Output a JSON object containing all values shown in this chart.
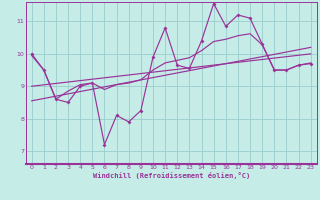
{
  "xlabel": "Windchill (Refroidissement éolien,°C)",
  "bg_color": "#c5ece6",
  "grid_color": "#99cccc",
  "line_color": "#993399",
  "spine_color": "#993399",
  "xlim": [
    -0.5,
    23.5
  ],
  "ylim": [
    6.6,
    11.6
  ],
  "xticks": [
    0,
    1,
    2,
    3,
    4,
    5,
    6,
    7,
    8,
    9,
    10,
    11,
    12,
    13,
    14,
    15,
    16,
    17,
    18,
    19,
    20,
    21,
    22,
    23
  ],
  "yticks": [
    7,
    8,
    9,
    10,
    11
  ],
  "raw_x": [
    0,
    1,
    2,
    3,
    4,
    5,
    6,
    7,
    8,
    9,
    10,
    11,
    12,
    13,
    14,
    15,
    16,
    17,
    18,
    19,
    20,
    21,
    22,
    23
  ],
  "raw_y": [
    10.0,
    9.5,
    8.6,
    8.5,
    9.0,
    9.1,
    7.2,
    8.1,
    7.9,
    8.25,
    9.9,
    10.8,
    9.65,
    9.55,
    10.4,
    11.55,
    10.85,
    11.2,
    11.1,
    10.3,
    9.5,
    9.5,
    9.65,
    9.7
  ],
  "line2_x": [
    0,
    1,
    2,
    3,
    4,
    5,
    6,
    7,
    8,
    9,
    10,
    11,
    12,
    13,
    14,
    15,
    16,
    17,
    18,
    19,
    20,
    21,
    22,
    23
  ],
  "line2_y": [
    9.95,
    9.5,
    8.6,
    8.85,
    9.05,
    9.1,
    8.9,
    9.05,
    9.1,
    9.2,
    9.5,
    9.72,
    9.8,
    9.88,
    10.1,
    10.38,
    10.45,
    10.56,
    10.62,
    10.28,
    9.5,
    9.5,
    9.65,
    9.72
  ],
  "trend1_x": [
    0,
    23
  ],
  "trend1_y": [
    9.0,
    10.0
  ],
  "trend2_x": [
    0,
    23
  ],
  "trend2_y": [
    8.55,
    10.2
  ]
}
